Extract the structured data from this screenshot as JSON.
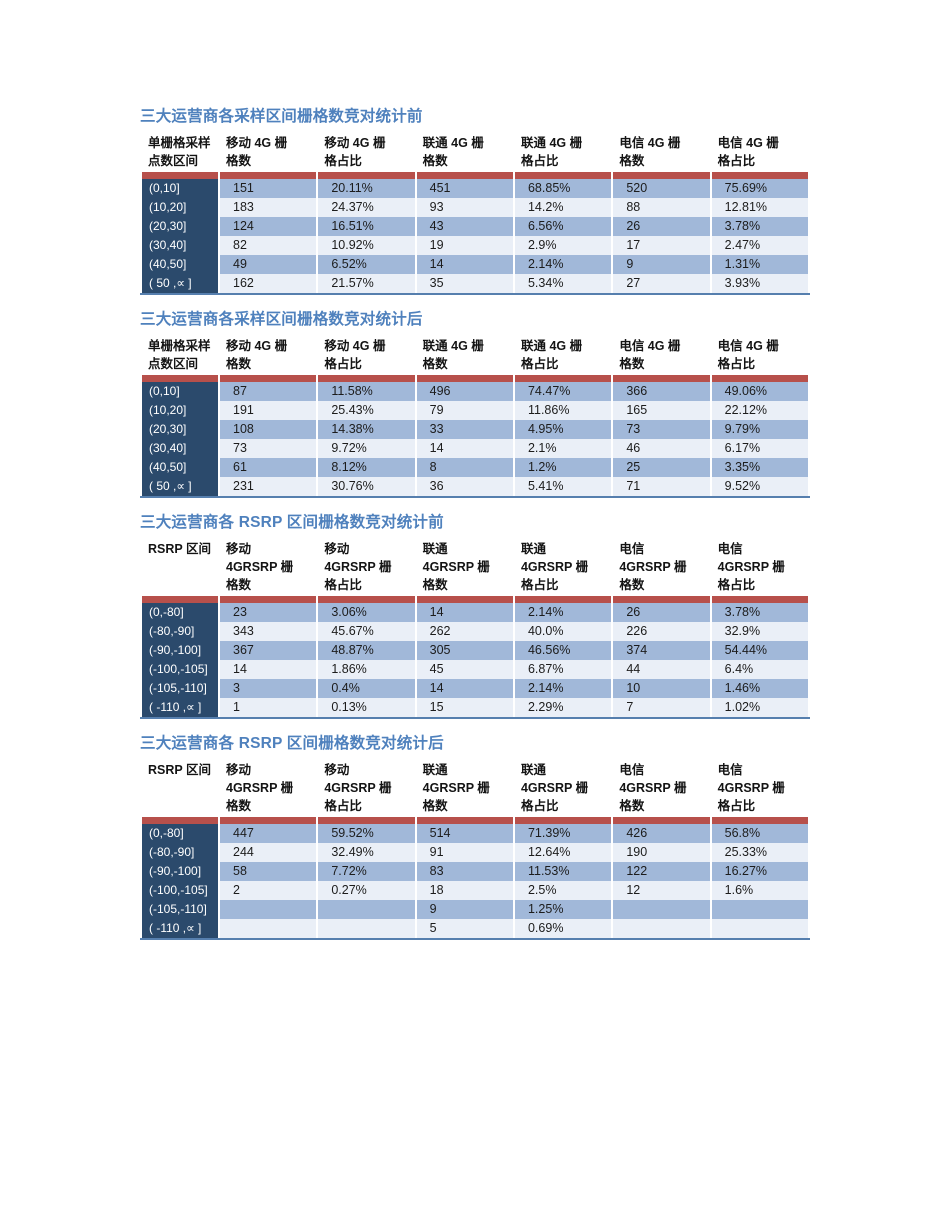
{
  "document": {
    "background": "#ffffff",
    "colors": {
      "title_text": "#4f81bd",
      "header_text": "#141414",
      "row_label_bg": "#2b4a6c",
      "row_label_text": "#ffffff",
      "row_fill_blue": "#a1b8d9",
      "row_fill_light": "#eaeff7",
      "divider_red": "#b7504b",
      "table_bottom_border": "#567fae",
      "cell_text": "#1c1c1c"
    },
    "tables": [
      {
        "title": "三大运营商各采样区间栅格数竞对统计前",
        "headers": [
          "单栅格采样\n点数区间",
          "移动 4G 栅\n格数",
          "移动 4G 栅\n格占比",
          "联通 4G 栅\n格数",
          "联通 4G 栅\n格占比",
          "电信 4G 栅\n格数",
          "电信 4G 栅\n格占比"
        ],
        "rows": [
          [
            "(0,10]",
            "151",
            "20.11%",
            "451",
            "68.85%",
            "520",
            "75.69%"
          ],
          [
            "(10,20]",
            "183",
            "24.37%",
            "93",
            "14.2%",
            "88",
            "12.81%"
          ],
          [
            "(20,30]",
            "124",
            "16.51%",
            "43",
            "6.56%",
            "26",
            "3.78%"
          ],
          [
            "(30,40]",
            "82",
            "10.92%",
            "19",
            "2.9%",
            "17",
            "2.47%"
          ],
          [
            "(40,50]",
            "49",
            "6.52%",
            "14",
            "2.14%",
            "9",
            "1.31%"
          ],
          [
            "( 50 ,∝  ]",
            "162",
            "21.57%",
            "35",
            "5.34%",
            "27",
            "3.93%"
          ]
        ]
      },
      {
        "title": "三大运营商各采样区间栅格数竞对统计后",
        "headers": [
          "单栅格采样\n点数区间",
          "移动 4G 栅\n格数",
          "移动 4G 栅\n格占比",
          "联通 4G 栅\n格数",
          "联通 4G 栅\n格占比",
          "电信 4G 栅\n格数",
          "电信 4G 栅\n格占比"
        ],
        "rows": [
          [
            "(0,10]",
            "87",
            "11.58%",
            "496",
            "74.47%",
            "366",
            "49.06%"
          ],
          [
            "(10,20]",
            "191",
            "25.43%",
            "79",
            "11.86%",
            "165",
            "22.12%"
          ],
          [
            "(20,30]",
            "108",
            "14.38%",
            "33",
            "4.95%",
            "73",
            "9.79%"
          ],
          [
            "(30,40]",
            "73",
            "9.72%",
            "14",
            "2.1%",
            "46",
            "6.17%"
          ],
          [
            "(40,50]",
            "61",
            "8.12%",
            "8",
            "1.2%",
            "25",
            "3.35%"
          ],
          [
            "( 50 ,∝  ]",
            "231",
            "30.76%",
            "36",
            "5.41%",
            "71",
            "9.52%"
          ]
        ]
      },
      {
        "title": "三大运营商各 RSRP 区间栅格数竞对统计前",
        "headers": [
          "RSRP 区间",
          "移动\n4GRSRP 栅\n格数",
          "移动\n4GRSRP 栅\n格占比",
          "联通\n4GRSRP 栅\n格数",
          "联通\n4GRSRP 栅\n格占比",
          "电信\n4GRSRP 栅\n格数",
          "电信\n4GRSRP 栅\n格占比"
        ],
        "rows": [
          [
            "(0,-80]",
            "23",
            "3.06%",
            "14",
            "2.14%",
            "26",
            "3.78%"
          ],
          [
            "(-80,-90]",
            "343",
            "45.67%",
            "262",
            "40.0%",
            "226",
            "32.9%"
          ],
          [
            "(-90,-100]",
            "367",
            "48.87%",
            "305",
            "46.56%",
            "374",
            "54.44%"
          ],
          [
            "(-100,-105]",
            "14",
            "1.86%",
            "45",
            "6.87%",
            "44",
            "6.4%"
          ],
          [
            "(-105,-110]",
            "3",
            "0.4%",
            "14",
            "2.14%",
            "10",
            "1.46%"
          ],
          [
            "( -110 ,∝  ]",
            "1",
            "0.13%",
            "15",
            "2.29%",
            "7",
            "1.02%"
          ]
        ]
      },
      {
        "title": "三大运营商各 RSRP 区间栅格数竞对统计后",
        "headers": [
          "RSRP 区间",
          "移动\n4GRSRP 栅\n格数",
          "移动\n4GRSRP 栅\n格占比",
          "联通\n4GRSRP 栅\n格数",
          "联通\n4GRSRP 栅\n格占比",
          "电信\n4GRSRP 栅\n格数",
          "电信\n4GRSRP 栅\n格占比"
        ],
        "rows": [
          [
            "(0,-80]",
            "447",
            "59.52%",
            "514",
            "71.39%",
            "426",
            "56.8%"
          ],
          [
            "(-80,-90]",
            "244",
            "32.49%",
            "91",
            "12.64%",
            "190",
            "25.33%"
          ],
          [
            "(-90,-100]",
            "58",
            "7.72%",
            "83",
            "11.53%",
            "122",
            "16.27%"
          ],
          [
            "(-100,-105]",
            "2",
            "0.27%",
            "18",
            "2.5%",
            "12",
            "1.6%"
          ],
          [
            "(-105,-110]",
            "",
            "",
            "9",
            "1.25%",
            "",
            ""
          ],
          [
            "( -110 ,∝  ]",
            "",
            "",
            "5",
            "0.69%",
            "",
            ""
          ]
        ]
      }
    ]
  }
}
